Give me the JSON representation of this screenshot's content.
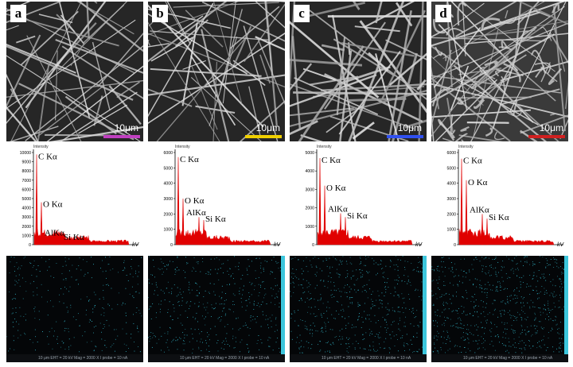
{
  "panels": [
    {
      "letter": "a",
      "scale_text": "10μm",
      "scale_color": "#c040c0",
      "eds": {
        "intensity_label": "Intensity",
        "yticks": [
          "10000",
          "9000",
          "8000",
          "7000",
          "6000",
          "5000",
          "4000",
          "3000",
          "2000",
          "1000",
          "0"
        ],
        "ymax": 10000,
        "x_unit": "kV",
        "peaks": [
          {
            "label": "C Kα",
            "value": 9800
          },
          {
            "label": "O Kα",
            "value": 4600
          },
          {
            "label": "AlKα",
            "value": 800
          },
          {
            "label": "Si Kα",
            "value": 700
          }
        ]
      },
      "map_footer": "10 μm   EHT = 20 kV   Mag = 2000 X   I probe = 10 nA",
      "map_density": 0.35
    },
    {
      "letter": "b",
      "scale_text": "10μm",
      "scale_color": "#f0d000",
      "eds": {
        "intensity_label": "Intensity",
        "yticks": [
          "6000",
          "5000",
          "4000",
          "3000",
          "2000",
          "1000",
          "0"
        ],
        "ymax": 6000,
        "x_unit": "kV",
        "peaks": [
          {
            "label": "C Kα",
            "value": 5700
          },
          {
            "label": "O Kα",
            "value": 3000
          },
          {
            "label": "AlKα",
            "value": 1800
          },
          {
            "label": "Si Kα",
            "value": 1600
          }
        ]
      },
      "map_footer": "10 μm   EHT = 20 kV   Mag = 2000 X   I probe = 10 nA",
      "map_density": 0.55
    },
    {
      "letter": "c",
      "scale_text": "10μm",
      "scale_color": "#3050f0",
      "eds": {
        "intensity_label": "Intensity",
        "yticks": [
          "5000",
          "4000",
          "3000",
          "2000",
          "1000",
          "0"
        ],
        "ymax": 5000,
        "x_unit": "kV",
        "peaks": [
          {
            "label": "C Kα",
            "value": 4700
          },
          {
            "label": "O Kα",
            "value": 3200
          },
          {
            "label": "AlKα",
            "value": 1700
          },
          {
            "label": "Si Kα",
            "value": 1500
          }
        ]
      },
      "map_footer": "10 μm   EHT = 20 kV   Mag = 2000 X   I probe = 10 nA",
      "map_density": 0.7
    },
    {
      "letter": "d",
      "scale_text": "10μm",
      "scale_color": "#d02020",
      "eds": {
        "intensity_label": "Intensity",
        "yticks": [
          "6000",
          "5000",
          "4000",
          "3000",
          "2000",
          "1000",
          "0"
        ],
        "ymax": 6000,
        "x_unit": "kV",
        "peaks": [
          {
            "label": "C Kα",
            "value": 5600
          },
          {
            "label": "O Kα",
            "value": 4200
          },
          {
            "label": "AlKα",
            "value": 2000
          },
          {
            "label": "Si Kα",
            "value": 1700
          }
        ]
      },
      "map_footer": "10 μm   EHT = 20 kV   Mag = 2000 X   I probe = 10 nA",
      "map_density": 0.85
    }
  ]
}
